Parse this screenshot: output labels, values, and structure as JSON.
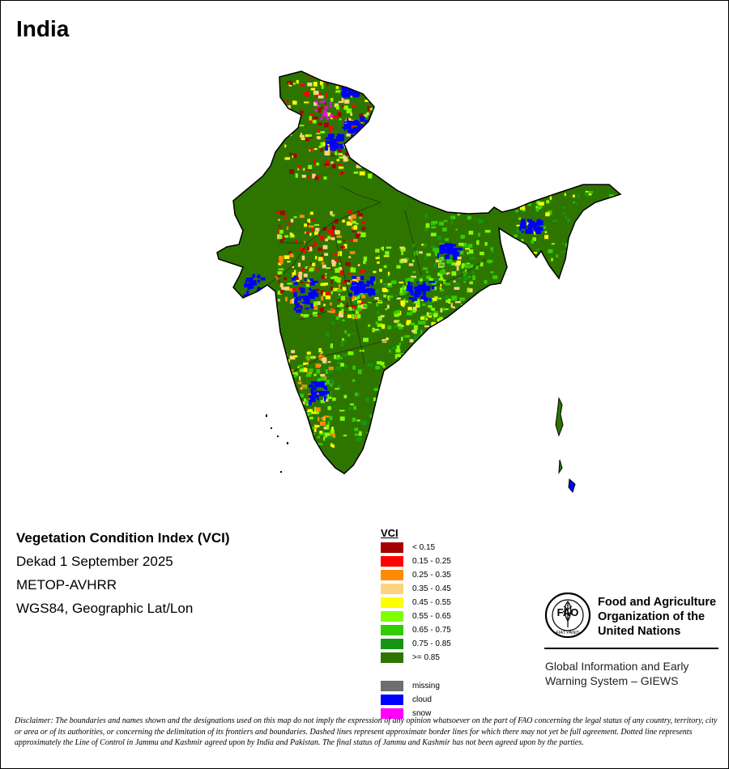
{
  "title": "India",
  "info": {
    "product": "Vegetation Condition Index (VCI)",
    "period": "Dekad 1 September 2025",
    "sensor": "METOP-AVHRR",
    "projection": "WGS84, Geographic Lat/Lon"
  },
  "legend": {
    "title": "VCI",
    "classes": [
      {
        "label": "< 0.15",
        "color": "#a50000"
      },
      {
        "label": "0.15 - 0.25",
        "color": "#ff0000"
      },
      {
        "label": "0.25 - 0.35",
        "color": "#ff8c00"
      },
      {
        "label": "0.35 - 0.45",
        "color": "#ffd27f"
      },
      {
        "label": "0.45 - 0.55",
        "color": "#ffff00"
      },
      {
        "label": "0.55 - 0.65",
        "color": "#80ff00"
      },
      {
        "label": "0.65 - 0.75",
        "color": "#33cc00"
      },
      {
        "label": "0.75 - 0.85",
        "color": "#149614"
      },
      {
        "label": ">= 0.85",
        "color": "#2e7500"
      }
    ],
    "extra": [
      {
        "label": "missing",
        "color": "#6e6e6e"
      },
      {
        "label": "cloud",
        "color": "#0000ff"
      },
      {
        "label": "snow",
        "color": "#ff00ff"
      }
    ]
  },
  "organization": {
    "logo_text": "FAO",
    "logo_motto": "FIAT PANIS",
    "name_line1": "Food and Agriculture",
    "name_line2": "Organization of the",
    "name_line3": "United Nations",
    "system_line1": "Global Information and Early",
    "system_line2": "Warning System – GIEWS"
  },
  "disclaimer": "Disclaimer: The boundaries and names shown and the designations used on this map do not imply the expression of any opinion whatsoever on the part of FAO concerning the legal status of any country, territory, city or area or of its authorities, or concerning the delimitation of its frontiers and boundaries. Dashed lines represent approximate border lines for which there may not yet be full agreement. Dotted line represents approximately the Line of Control in Jammu and Kashmir agreed upon by India and Pakistan. The final status of Jammu and Kashmir has not been agreed upon by the parties."
}
